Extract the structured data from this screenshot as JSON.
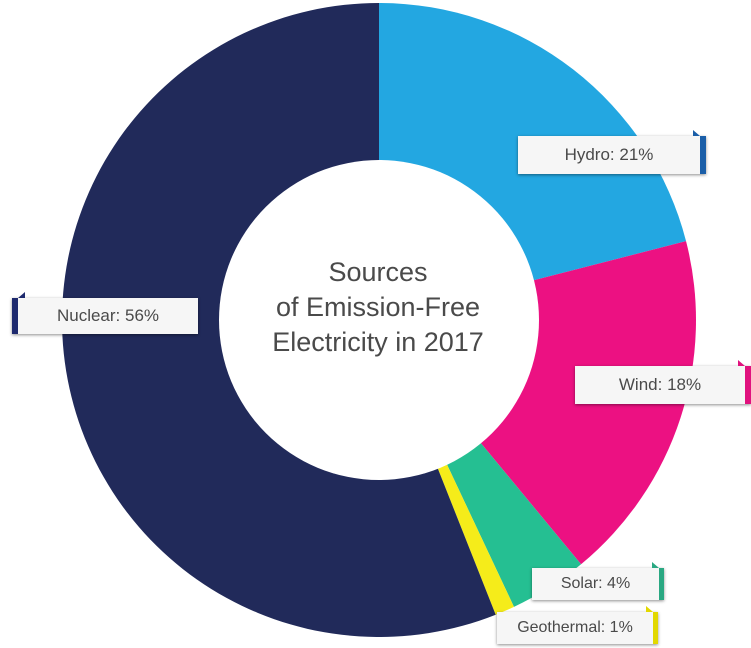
{
  "chart_data": {
    "type": "pie",
    "title_lines": [
      "Sources",
      "of Emission-Free",
      "Electricity in 2017"
    ],
    "categories": [
      "Hydro",
      "Wind",
      "Solar",
      "Geothermal",
      "Nuclear"
    ],
    "values": [
      21,
      18,
      4,
      1,
      56
    ],
    "colors": [
      "#23a7e1",
      "#ec1182",
      "#25bf92",
      "#f5ec1a",
      "#212a5a"
    ],
    "labels": [
      "Hydro: 21%",
      "Wind: 18%",
      "Solar: 4%",
      "Geothermal: 1%",
      "Nuclear: 56%"
    ],
    "donut": true,
    "legend": "callouts"
  }
}
